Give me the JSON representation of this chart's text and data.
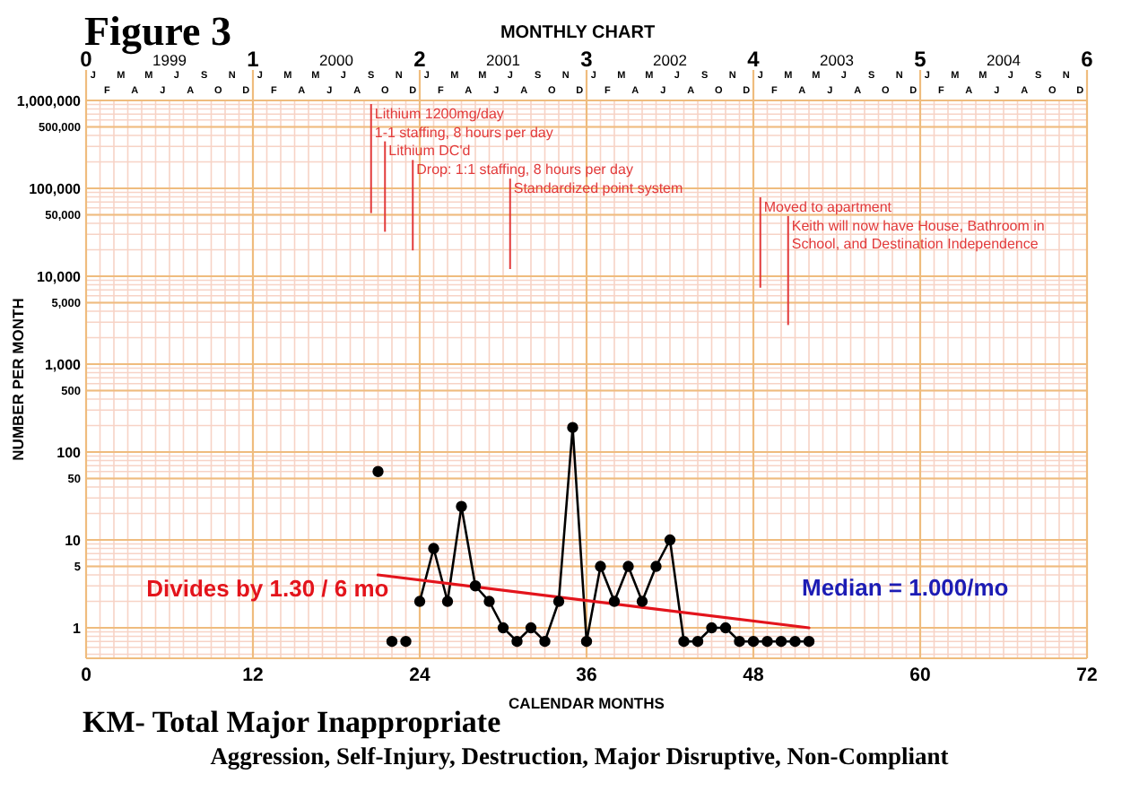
{
  "chart_data": {
    "type": "line",
    "title": "KM- Total Major Inappropriate",
    "subtitle": "Aggression, Self-Injury, Destruction, Major Disruptive, Non-Compliant",
    "xlabel": "CALENDAR MONTHS",
    "ylabel": "NUMBER PER MONTH",
    "x2label": "MONTHLY CHART",
    "annotations": [
      "Figure 3",
      "Median = 1.000/mo",
      "1999",
      "2000",
      "2001",
      "2002",
      "2003",
      "2004",
      "J",
      "F",
      "M",
      "A",
      "M",
      "J",
      "J",
      "A",
      "S",
      "O",
      "N",
      "D",
      "J",
      "F",
      "M",
      "A",
      "M",
      "J",
      "J",
      "A",
      "S",
      "O",
      "N",
      "D",
      "J",
      "F",
      "M",
      "A",
      "M",
      "J",
      "J",
      "A",
      "S",
      "O",
      "N",
      "D",
      "J",
      "F",
      "M",
      "A",
      "M",
      "J",
      "J",
      "A",
      "S",
      "O",
      "N",
      "D",
      "J",
      "F",
      "M",
      "A",
      "M",
      "J",
      "J",
      "A",
      "S",
      "O",
      "N",
      "D",
      "J",
      "F",
      "M",
      "A",
      "M",
      "J",
      "J",
      "A",
      "S",
      "O",
      "N",
      "D",
      {
        "text": "Drop: 1:1 staffing, 8 hours per day",
        "x": 23.5
      }
    ],
    "xlim": [
      0,
      72
    ],
    "xticks": [
      0,
      {
        "value": 1,
        "label": null
      },
      {
        "value": 2,
        "label": null
      },
      {
        "value": 3,
        "label": null
      },
      {
        "value": 4,
        "label": null
      },
      {
        "value": 5,
        "label": null
      },
      {
        "value": 6,
        "label": null
      },
      {
        "value": 7,
        "label": null
      },
      {
        "value": 8,
        "label": null
      },
      {
        "value": 9,
        "label": null
      },
      {
        "value": 10,
        "label": null
      },
      {
        "value": 11,
        "label": null
      },
      12,
      {
        "value": 13,
        "label": null
      },
      {
        "value": 14,
        "label": null
      },
      {
        "value": 15,
        "label": null
      },
      {
        "value": 16,
        "label": null
      },
      {
        "value": 17,
        "label": null
      },
      {
        "value": 18,
        "label": null
      },
      {
        "value": 19,
        "label": null
      },
      {
        "value": 20,
        "label": null
      },
      {
        "value": 21,
        "label": null
      },
      {
        "value": 22,
        "label": null
      },
      {
        "value": 23,
        "label": null
      },
      24,
      {
        "value": 25,
        "label": null
      },
      {
        "value": 26,
        "label": null
      },
      {
        "value": 27,
        "label": null
      },
      {
        "value": 28,
        "label": null
      },
      {
        "value": 29,
        "label": null
      },
      {
        "value": 30,
        "label": null
      },
      {
        "value": 31,
        "label": null
      },
      {
        "value": 32,
        "label": null
      },
      {
        "value": 33,
        "label": null
      },
      {
        "value": 34,
        "label": null
      },
      {
        "value": 35,
        "label": null
      },
      36,
      {
        "value": 37,
        "label": null
      },
      {
        "value": 38,
        "label": null
      },
      {
        "value": 39,
        "label": null
      },
      {
        "value": 40,
        "label": null
      },
      {
        "value": 41,
        "label": null
      },
      {
        "value": 42,
        "label": null
      },
      {
        "value": 43,
        "label": null
      },
      {
        "value": 44,
        "label": null
      },
      {
        "value": 45,
        "label": null
      },
      {
        "value": 46,
        "label": null
      },
      {
        "value": 47,
        "label": null
      },
      48,
      {
        "value": 49,
        "label": null
      },
      {
        "value": 50,
        "label": null
      },
      {
        "value": 51,
        "label": null
      },
      {
        "value": 52,
        "label": null
      },
      {
        "value": 53,
        "label": null
      },
      {
        "value": 54,
        "label": null
      },
      {
        "value": 55,
        "label": null
      },
      {
        "value": 56,
        "label": null
      },
      {
        "value": 57,
        "label": null
      },
      {
        "value": 58,
        "label": null
      },
      {
        "value": 59,
        "label": null
      },
      60,
      {
        "value": 61,
        "label": null
      },
      {
        "value": 62,
        "label": null
      },
      {
        "value": 63,
        "label": null
      },
      {
        "value": 64,
        "label": null
      },
      {
        "value": 65,
        "label": null
      },
      {
        "value": 66,
        "label": null
      },
      {
        "value": 67,
        "label": null
      },
      {
        "value": 68,
        "label": null
      },
      {
        "value": 69,
        "label": null
      },
      {
        "value": 70,
        "label": null
      },
      {
        "value": 71,
        "label": null
      },
      72
    ],
    "ylim": [
      0.45,
      1000000
    ],
    "yticks": [
      {
        "value": 0.5,
        "label": null
      },
      {
        "value": 0.6,
        "label": null
      },
      {
        "value": 0.7,
        "label": null
      },
      {
        "value": 0.8,
        "label": null
      },
      {
        "value": 0.9,
        "label": null
      },
      1,
      {
        "value": 2,
        "label": null
      },
      {
        "value": 3,
        "label": null
      },
      {
        "value": 4,
        "label": null
      },
      5,
      {
        "value": 6,
        "label": null
      },
      {
        "value": 7,
        "label": null
      },
      {
        "value": 8,
        "label": null
      },
      {
        "value": 9,
        "label": null
      },
      10,
      {
        "value": 20,
        "label": null
      },
      {
        "value": 30,
        "label": null
      },
      {
        "value": 40,
        "label": null
      },
      50,
      {
        "value": 60,
        "label": null
      },
      {
        "value": 70,
        "label": null
      },
      {
        "value": 80,
        "label": null
      },
      {
        "value": 90,
        "label": null
      },
      100,
      {
        "value": 200,
        "label": null
      },
      {
        "value": 300,
        "label": null
      },
      {
        "value": 400,
        "label": null
      },
      500,
      {
        "value": 600,
        "label": null
      },
      {
        "value": 700,
        "label": null
      },
      {
        "value": 800,
        "label": null
      },
      {
        "value": 900,
        "label": null
      },
      {
        "value": 1000,
        "label": "1,000"
      },
      {
        "value": 2000,
        "label": null
      },
      {
        "value": 3000,
        "label": null
      },
      {
        "value": 4000,
        "label": null
      },
      {
        "value": 5000,
        "label": "5,000"
      },
      {
        "value": 6000,
        "label": null
      },
      {
        "value": 7000,
        "label": null
      },
      {
        "value": 8000,
        "label": null
      },
      {
        "value": 9000,
        "label": null
      },
      {
        "value": 10000,
        "label": "10,000"
      },
      {
        "value": 20000,
        "label": null
      },
      {
        "value": 30000,
        "label": null
      },
      {
        "value": 40000,
        "label": null
      },
      {
        "value": 50000,
        "label": "50,000"
      },
      {
        "value": 60000,
        "label": null
      },
      {
        "value": 70000,
        "label": null
      },
      {
        "value": 80000,
        "label": null
      },
      {
        "value": 90000,
        "label": null
      },
      {
        "value": 100000,
        "label": "100,000"
      },
      {
        "value": 200000,
        "label": null
      },
      {
        "value": 300000,
        "label": null
      },
      {
        "value": 400000,
        "label": null
      },
      {
        "value": 500000,
        "label": "500,000"
      },
      {
        "value": 600000,
        "label": null
      },
      {
        "value": 700000,
        "label": null
      },
      {
        "value": 800000,
        "label": null
      },
      {
        "value": 900000,
        "label": null
      },
      {
        "value": 1000000,
        "label": "1,000,000"
      }
    ],
    "x2lim": [
      0,
      6
    ],
    "x2ticks": [
      0,
      1,
      2,
      3,
      4,
      5,
      6
    ],
    "log": true,
    "grid": true,
    "legend": false,
    "marker": "circle",
    "series": [
      {
        "type": "scatter",
        "color": "#000000",
        "x": [
          21,
          22,
          23
        ],
        "values": [
          60,
          0.7,
          0.7
        ]
      },
      {
        "color": "#000000",
        "x": [
          24,
          25,
          26,
          27,
          28,
          29,
          30,
          31,
          32,
          33,
          34,
          35,
          36,
          37,
          38,
          39,
          40,
          41,
          42,
          43,
          44,
          45,
          46,
          47,
          48,
          49,
          50,
          51,
          52
        ],
        "values": [
          2,
          8,
          2,
          24,
          3,
          2,
          1,
          0.7,
          1,
          0.7,
          2,
          190,
          0.7,
          5,
          2,
          5,
          2,
          5,
          10,
          0.7,
          0.7,
          1,
          1,
          0.7,
          0.7,
          0.7,
          0.7,
          0.7,
          0.7
        ]
      },
      {
        "type": "line",
        "name": "Divides by 1.30 / 6 mo",
        "color": "#e3141c",
        "marker": "none",
        "x": [
          21,
          52
        ],
        "values": [
          4,
          1
        ]
      }
    ],
    "ref_lines": [
      {
        "axis": "x",
        "value": 20.5,
        "label": "Lithium 1200mg/day\n1-1 staffing, 8 hours per day",
        "color": "#e23a3a"
      },
      {
        "axis": "x",
        "value": 21.5,
        "label": "Lithium DC'd",
        "color": "#e23a3a"
      },
      {
        "axis": "x",
        "value": 23.5,
        "color": "#e23a3a"
      },
      {
        "axis": "x",
        "value": 30.5,
        "label": "Standardized point system",
        "color": "#e23a3a"
      },
      {
        "axis": "x",
        "value": 48.5,
        "label": "Moved to apartment",
        "color": "#e23a3a"
      },
      {
        "axis": "x",
        "value": 50.5,
        "label": "Keith will now have House, Bathroom in School, and Destination Independence",
        "color": "#e23a3a"
      }
    ]
  }
}
